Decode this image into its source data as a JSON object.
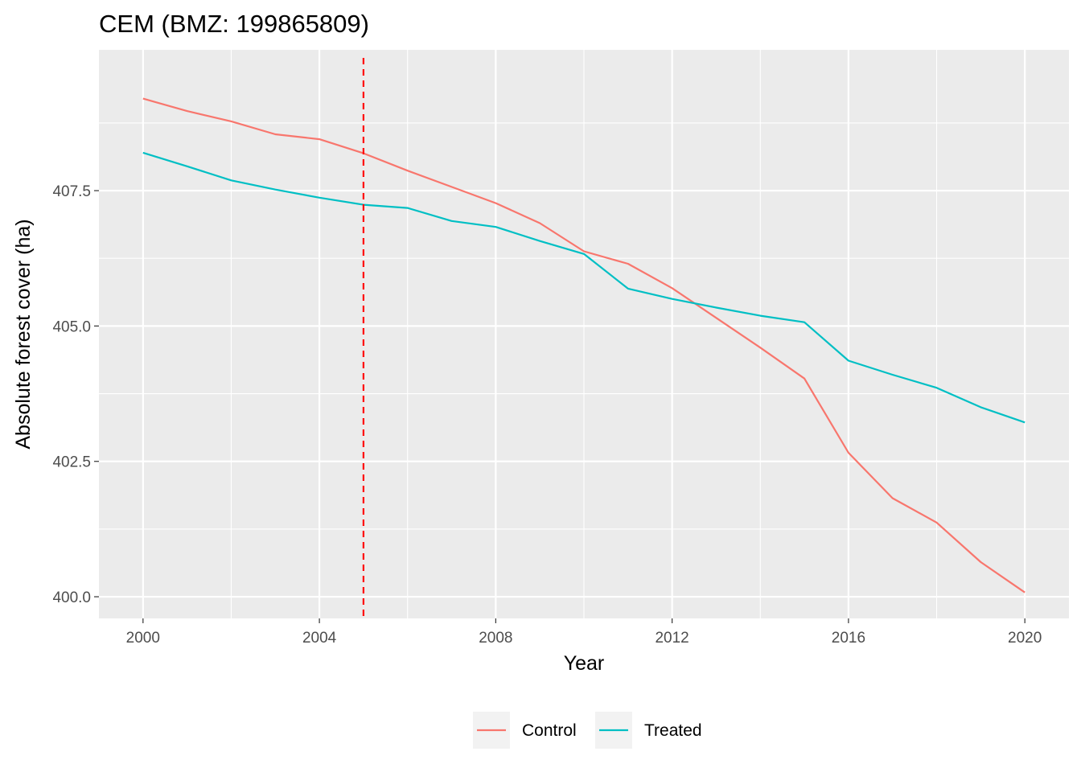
{
  "chart_data": {
    "type": "line",
    "title": "CEM (BMZ: 199865809)",
    "xlabel": "Year",
    "ylabel": "Absolute forest cover (ha)",
    "xlim": [
      1999,
      2021
    ],
    "ylim": [
      399.6,
      410.1
    ],
    "x_ticks": [
      2000,
      2004,
      2008,
      2012,
      2016,
      2020
    ],
    "y_ticks": [
      400.0,
      402.5,
      405.0,
      407.5
    ],
    "y_tick_labels": [
      "400.0",
      "402.5",
      "405.0",
      "407.5"
    ],
    "grid": true,
    "legend_position": "bottom",
    "reference_line": {
      "x": 2005,
      "color": "#ff0000",
      "style": "dashed"
    },
    "x": [
      2000,
      2001,
      2002,
      2003,
      2004,
      2005,
      2006,
      2007,
      2008,
      2009,
      2010,
      2011,
      2012,
      2013,
      2014,
      2015,
      2016,
      2017,
      2018,
      2019,
      2020
    ],
    "series": [
      {
        "name": "Control",
        "color": "#f8766d",
        "values": [
          409.2,
          408.97,
          408.78,
          408.54,
          408.45,
          408.19,
          407.87,
          407.57,
          407.27,
          406.9,
          406.38,
          406.15,
          405.7,
          405.15,
          404.6,
          404.03,
          402.66,
          401.82,
          401.37,
          400.64,
          400.08
        ]
      },
      {
        "name": "Treated",
        "color": "#00bfc4",
        "values": [
          408.2,
          407.95,
          407.69,
          407.52,
          407.37,
          407.24,
          407.18,
          406.94,
          406.83,
          406.57,
          406.33,
          405.69,
          405.5,
          405.34,
          405.19,
          405.07,
          404.36,
          404.1,
          403.86,
          403.5,
          403.22
        ]
      }
    ]
  }
}
